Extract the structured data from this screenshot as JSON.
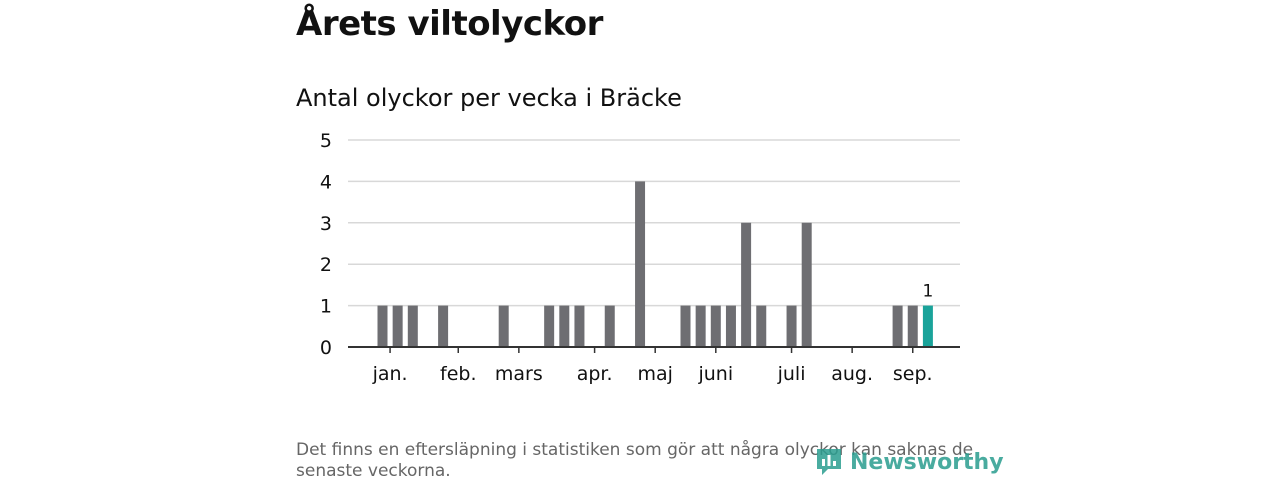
{
  "title": "Årets viltolyckor",
  "chart_title": "Antal olyckor per vecka i Bräcke",
  "footnote": "Det finns en eftersläpning i statistiken som gör att några olyckor kan saknas de senaste veckorna.",
  "logo": {
    "text": "Newsworthy",
    "icon": "newsworthy-logo-icon"
  },
  "colors": {
    "bar": "#6e6e72",
    "highlight": "#1aa39a",
    "grid": "#d8d8d8",
    "axis": "#333333"
  },
  "chart_data": {
    "type": "bar",
    "title": "Antal olyckor per vecka i Bräcke",
    "xlabel": "",
    "ylabel": "",
    "ylim": [
      0,
      5
    ],
    "yticks": [
      0,
      1,
      2,
      3,
      4,
      5
    ],
    "grid": true,
    "week_range": [
      1,
      39
    ],
    "month_labels": [
      {
        "label": "jan.",
        "week": 1.5
      },
      {
        "label": "feb.",
        "week": 6
      },
      {
        "label": "mars",
        "week": 10
      },
      {
        "label": "apr.",
        "week": 15
      },
      {
        "label": "maj",
        "week": 19
      },
      {
        "label": "juni",
        "week": 23
      },
      {
        "label": "juli",
        "week": 28
      },
      {
        "label": "aug.",
        "week": 32
      },
      {
        "label": "sep.",
        "week": 36
      }
    ],
    "series": [
      {
        "weeks": [
          1,
          2,
          3,
          5,
          9,
          12,
          13,
          14,
          16,
          18,
          21,
          22,
          23,
          24,
          25,
          26,
          28,
          29,
          35,
          36,
          37
        ],
        "values": [
          1,
          1,
          1,
          1,
          1,
          1,
          1,
          1,
          1,
          4,
          1,
          1,
          1,
          1,
          3,
          1,
          1,
          3,
          1,
          1,
          1
        ]
      }
    ],
    "highlight": {
      "week": 37,
      "value": 1,
      "label": "1"
    }
  }
}
